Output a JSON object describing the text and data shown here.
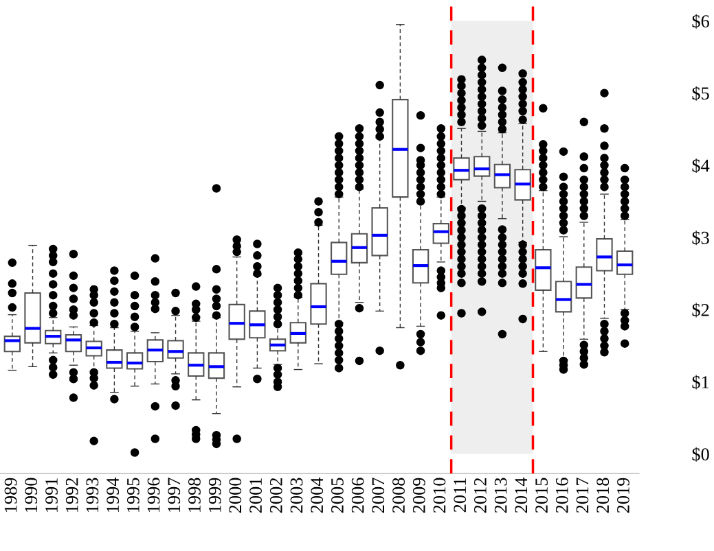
{
  "chart_data": {
    "type": "box",
    "x": [
      1989,
      1990,
      1991,
      1992,
      1993,
      1994,
      1995,
      1996,
      1997,
      1998,
      1999,
      2000,
      2001,
      2002,
      2003,
      2004,
      2005,
      2006,
      2007,
      2008,
      2009,
      2010,
      2011,
      2012,
      2013,
      2014,
      2015,
      2016,
      2017,
      2018,
      2019
    ],
    "xlim": [
      1988.4,
      2019.7
    ],
    "xticks": [
      1989,
      1990,
      1991,
      1992,
      1993,
      1994,
      1995,
      1996,
      1997,
      1998,
      1999,
      2000,
      2001,
      2002,
      2003,
      2004,
      2005,
      2006,
      2007,
      2008,
      2009,
      2010,
      2011,
      2012,
      2013,
      2014,
      2015,
      2016,
      2017,
      2018,
      2019
    ],
    "ylim": [
      -0.27,
      6.29
    ],
    "yticks": [
      {
        "value": 0,
        "label": "$0"
      },
      {
        "value": 1,
        "label": "$1"
      },
      {
        "value": 2,
        "label": "$2"
      },
      {
        "value": 3,
        "label": "$3"
      },
      {
        "value": 4,
        "label": "$4"
      },
      {
        "value": 5,
        "label": "$5"
      },
      {
        "value": 6,
        "label": "$6"
      }
    ],
    "grid": false,
    "boxes": [
      {
        "low": 1.16,
        "q1": 1.42,
        "median": 1.57,
        "q3": 1.63,
        "high": 1.93,
        "outliers": [
          2.03,
          2.23,
          2.36,
          2.65
        ]
      },
      {
        "low": 1.21,
        "q1": 1.54,
        "median": 1.74,
        "q3": 2.23,
        "high": 2.89
      },
      {
        "low": 1.4,
        "q1": 1.53,
        "median": 1.63,
        "q3": 1.71,
        "high": 1.89,
        "outliers": [
          1.95,
          2.05,
          2.2,
          2.35,
          2.5,
          2.66,
          2.75,
          2.84,
          1.3,
          1.2,
          1.1
        ]
      },
      {
        "low": 1.23,
        "q1": 1.42,
        "median": 1.58,
        "q3": 1.65,
        "high": 1.76,
        "outliers": [
          1.92,
          2.0,
          2.15,
          2.3,
          2.47,
          2.77,
          1.13,
          1.04,
          0.78
        ]
      },
      {
        "low": 1.15,
        "q1": 1.36,
        "median": 1.47,
        "q3": 1.56,
        "high": 1.78,
        "outliers": [
          1.82,
          1.95,
          2.1,
          2.2,
          2.28,
          1.13,
          1.05,
          0.95,
          0.18
        ]
      },
      {
        "low": 0.85,
        "q1": 1.19,
        "median": 1.27,
        "q3": 1.44,
        "high": 1.75,
        "outliers": [
          1.8,
          1.95,
          2.1,
          2.25,
          2.4,
          2.54,
          0.76
        ]
      },
      {
        "low": 0.94,
        "q1": 1.18,
        "median": 1.26,
        "q3": 1.4,
        "high": 1.7,
        "outliers": [
          1.76,
          1.9,
          2.05,
          2.2,
          2.47,
          0.02
        ]
      },
      {
        "low": 0.97,
        "q1": 1.28,
        "median": 1.44,
        "q3": 1.58,
        "high": 1.68,
        "outliers": [
          2.01,
          2.1,
          2.2,
          2.39,
          2.71,
          0.66,
          0.21
        ]
      },
      {
        "low": 1.11,
        "q1": 1.33,
        "median": 1.42,
        "q3": 1.57,
        "high": 1.92,
        "outliers": [
          1.98,
          2.23,
          1.02,
          0.94,
          0.67
        ]
      },
      {
        "low": 0.75,
        "q1": 1.08,
        "median": 1.23,
        "q3": 1.4,
        "high": 1.84,
        "outliers": [
          1.89,
          2.0,
          2.08,
          2.32,
          0.33,
          0.27,
          0.21
        ]
      },
      {
        "low": 0.56,
        "q1": 1.05,
        "median": 1.21,
        "q3": 1.4,
        "high": 1.89,
        "outliers": [
          1.92,
          2.05,
          2.15,
          2.28,
          2.56,
          3.68,
          0.26,
          0.2,
          0.14
        ]
      },
      {
        "low": 0.93,
        "q1": 1.59,
        "median": 1.81,
        "q3": 2.07,
        "high": 2.73,
        "outliers": [
          2.8,
          2.88,
          2.97,
          0.21
        ]
      },
      {
        "low": 1.19,
        "q1": 1.61,
        "median": 1.79,
        "q3": 1.98,
        "high": 2.48,
        "outliers": [
          2.5,
          2.6,
          2.75,
          2.91,
          1.04
        ]
      },
      {
        "low": 1.24,
        "q1": 1.43,
        "median": 1.51,
        "q3": 1.59,
        "high": 1.79,
        "outliers": [
          1.8,
          1.9,
          2.0,
          2.1,
          2.2,
          2.3,
          1.19,
          1.1,
          1.0,
          0.93
        ]
      },
      {
        "low": 1.17,
        "q1": 1.54,
        "median": 1.67,
        "q3": 1.82,
        "high": 2.17,
        "outliers": [
          2.2,
          2.3,
          2.4,
          2.5,
          2.6,
          2.7,
          2.79
        ]
      },
      {
        "low": 1.25,
        "q1": 1.8,
        "median": 2.04,
        "q3": 2.36,
        "high": 3.17,
        "outliers": [
          3.21,
          3.35,
          3.5
        ]
      },
      {
        "low": 1.82,
        "q1": 2.49,
        "median": 2.67,
        "q3": 2.93,
        "high": 3.56,
        "outliers": [
          3.6,
          3.7,
          3.8,
          3.9,
          4.0,
          4.1,
          4.2,
          4.3,
          4.4,
          1.8,
          1.7,
          1.6,
          1.5,
          1.4,
          1.3,
          1.19
        ]
      },
      {
        "low": 2.1,
        "q1": 2.65,
        "median": 2.86,
        "q3": 3.05,
        "high": 3.67,
        "outliers": [
          3.7,
          3.8,
          3.9,
          4.0,
          4.1,
          4.2,
          4.3,
          4.4,
          4.51,
          2.02,
          1.29
        ]
      },
      {
        "low": 1.98,
        "q1": 2.75,
        "median": 3.03,
        "q3": 3.41,
        "high": 4.38,
        "outliers": [
          4.4,
          4.5,
          4.6,
          4.73,
          5.11,
          1.43
        ]
      },
      {
        "low": 1.75,
        "q1": 3.56,
        "median": 4.22,
        "q3": 4.91,
        "high": 5.95,
        "outliers": [
          1.23
        ]
      },
      {
        "low": 1.77,
        "q1": 2.37,
        "median": 2.61,
        "q3": 2.83,
        "high": 3.49,
        "outliers": [
          3.5,
          3.6,
          3.7,
          3.8,
          3.9,
          4.0,
          4.07,
          4.24,
          4.69,
          1.66,
          1.55,
          1.43
        ]
      },
      {
        "low": 2.66,
        "q1": 2.92,
        "median": 3.08,
        "q3": 3.19,
        "high": 3.56,
        "outliers": [
          3.6,
          3.7,
          3.8,
          3.9,
          4.0,
          4.1,
          4.2,
          4.3,
          4.4,
          4.51,
          2.54,
          2.45,
          2.37,
          2.3,
          1.92
        ]
      },
      {
        "low": 3.41,
        "q1": 3.8,
        "median": 3.93,
        "q3": 4.1,
        "high": 4.51,
        "outliers": [
          4.6,
          4.7,
          4.8,
          4.9,
          5.0,
          5.1,
          5.19,
          3.39,
          3.3,
          3.2,
          3.1,
          3.0,
          2.9,
          2.8,
          2.7,
          2.6,
          2.5,
          2.37,
          1.95
        ]
      },
      {
        "low": 3.5,
        "q1": 3.85,
        "median": 3.95,
        "q3": 4.12,
        "high": 4.47,
        "outliers": [
          4.55,
          4.65,
          4.75,
          4.85,
          4.95,
          5.05,
          5.15,
          5.25,
          5.35,
          5.46,
          3.4,
          3.3,
          3.2,
          3.1,
          3.0,
          2.9,
          2.8,
          2.7,
          2.6,
          2.5,
          2.39,
          1.97
        ]
      },
      {
        "low": 3.26,
        "q1": 3.69,
        "median": 3.87,
        "q3": 4.01,
        "high": 4.45,
        "outliers": [
          4.5,
          4.6,
          4.7,
          4.8,
          4.91,
          5.03,
          5.35,
          3.11,
          3.0,
          2.9,
          2.8,
          2.7,
          2.6,
          2.5,
          2.37,
          1.66
        ]
      },
      {
        "low": 2.93,
        "q1": 3.52,
        "median": 3.74,
        "q3": 3.94,
        "high": 4.58,
        "outliers": [
          4.63,
          4.75,
          4.85,
          4.95,
          5.05,
          5.15,
          5.27,
          2.9,
          2.8,
          2.7,
          2.6,
          2.5,
          2.36,
          1.87
        ]
      },
      {
        "low": 1.42,
        "q1": 2.27,
        "median": 2.58,
        "q3": 2.83,
        "high": 3.65,
        "outliers": [
          3.7,
          3.8,
          3.9,
          4.0,
          4.1,
          4.2,
          4.29,
          4.79
        ]
      },
      {
        "low": 1.31,
        "q1": 1.97,
        "median": 2.14,
        "q3": 2.39,
        "high": 3.01,
        "outliers": [
          3.1,
          3.2,
          3.3,
          3.4,
          3.5,
          3.6,
          3.7,
          3.84,
          4.19,
          1.29,
          1.23,
          1.17
        ]
      },
      {
        "low": 1.59,
        "q1": 2.16,
        "median": 2.35,
        "q3": 2.59,
        "high": 3.21,
        "outliers": [
          3.3,
          3.4,
          3.5,
          3.6,
          3.7,
          3.8,
          3.96,
          4.12,
          4.6,
          1.51,
          1.42,
          1.33,
          1.24
        ]
      },
      {
        "low": 1.88,
        "q1": 2.54,
        "median": 2.73,
        "q3": 2.98,
        "high": 3.6,
        "outliers": [
          3.7,
          3.8,
          3.9,
          4.0,
          4.1,
          4.27,
          4.51,
          5.0,
          1.8,
          1.7,
          1.6,
          1.5,
          1.41
        ]
      },
      {
        "low": 2.0,
        "q1": 2.49,
        "median": 2.62,
        "q3": 2.81,
        "high": 3.25,
        "outliers": [
          3.3,
          3.4,
          3.5,
          3.6,
          3.7,
          3.8,
          3.96,
          1.95,
          1.85,
          1.77,
          1.53
        ]
      }
    ],
    "bands": [
      {
        "axis": "x",
        "from": 2010.5,
        "to": 2014.5,
        "color": "#eeeeee"
      }
    ],
    "ref_lines": [
      {
        "axis": "x",
        "value": 2010.5,
        "color": "#ff0000",
        "line_style": "dashed"
      },
      {
        "axis": "x",
        "value": 2014.5,
        "color": "#ff0000",
        "line_style": "dashed"
      }
    ]
  }
}
